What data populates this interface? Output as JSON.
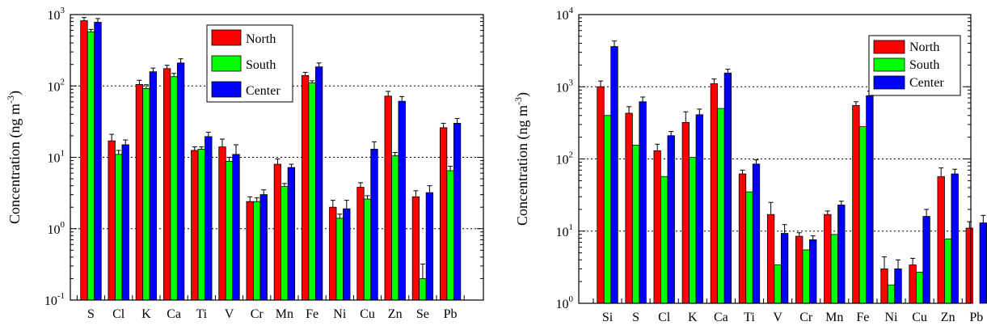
{
  "colors": {
    "North": "#ff0000",
    "South": "#00ff00",
    "Center": "#0000ff"
  },
  "chart_data": [
    {
      "type": "bar",
      "scale": "log",
      "ylabel": "Concentration (ng m-3)",
      "ylabel_main": "Concentration (ng m",
      "ylabel_sup": "-3",
      "ylabel_close": ")",
      "ylim": [
        0.1,
        1000
      ],
      "yticks": [
        {
          "value": 0.1,
          "base": "10",
          "exp": "-1"
        },
        {
          "value": 1,
          "base": "10",
          "exp": "0"
        },
        {
          "value": 10,
          "base": "10",
          "exp": "1"
        },
        {
          "value": 100,
          "base": "10",
          "exp": "2"
        },
        {
          "value": 1000,
          "base": "10",
          "exp": "3"
        }
      ],
      "grid_y": "dotted",
      "legend_position": "top-right",
      "categories": [
        "S",
        "Cl",
        "K",
        "Ca",
        "Ti",
        "V",
        "Cr",
        "Mn",
        "Fe",
        "Ni",
        "Cu",
        "Zn",
        "Se",
        "Pb"
      ],
      "series": [
        {
          "name": "North",
          "values": [
            820,
            17,
            105,
            175,
            12.5,
            14,
            2.4,
            8,
            140,
            2,
            3.8,
            72,
            2.8,
            26
          ],
          "errors": [
            90,
            4,
            15,
            20,
            1.5,
            4,
            0.4,
            1.5,
            15,
            0.5,
            0.6,
            12,
            0.6,
            4
          ]
        },
        {
          "name": "South",
          "values": [
            570,
            11,
            92,
            135,
            13,
            8.8,
            2.4,
            3.9,
            110,
            1.4,
            2.6,
            10.5,
            0.2,
            6.5
          ],
          "errors": [
            50,
            1.5,
            12,
            15,
            1,
            1.2,
            0.3,
            0.4,
            8,
            0.2,
            0.3,
            1.2,
            0.12,
            1
          ]
        },
        {
          "name": "Center",
          "values": [
            780,
            15,
            158,
            210,
            19.5,
            11,
            3,
            7.2,
            185,
            1.9,
            13,
            61,
            3.2,
            30
          ],
          "errors": [
            100,
            2.5,
            20,
            30,
            3,
            4,
            0.5,
            0.8,
            25,
            0.6,
            3.5,
            10,
            0.8,
            5
          ]
        }
      ]
    },
    {
      "type": "bar",
      "scale": "log",
      "ylabel": "Concentration (ng m-3)",
      "ylabel_main": "Concentration (ng m",
      "ylabel_sup": "-3",
      "ylabel_close": ")",
      "ylim": [
        1,
        10000
      ],
      "yticks": [
        {
          "value": 1,
          "base": "10",
          "exp": "0"
        },
        {
          "value": 10,
          "base": "10",
          "exp": "1"
        },
        {
          "value": 100,
          "base": "10",
          "exp": "2"
        },
        {
          "value": 1000,
          "base": "10",
          "exp": "3"
        },
        {
          "value": 10000,
          "base": "10",
          "exp": "4"
        }
      ],
      "grid_y": "dotted",
      "legend_position": "top-right",
      "categories": [
        "Si",
        "S",
        "Cl",
        "K",
        "Ca",
        "Ti",
        "V",
        "Cr",
        "Mn",
        "Fe",
        "Ni",
        "Cu",
        "Zn",
        "Pb"
      ],
      "series": [
        {
          "name": "North",
          "values": [
            1000,
            430,
            130,
            320,
            1100,
            62,
            17,
            8.5,
            17,
            550,
            3,
            3.4,
            57,
            11
          ],
          "errors": [
            200,
            100,
            30,
            130,
            180,
            8,
            8,
            1,
            2,
            70,
            1.4,
            0.8,
            18,
            2.5
          ]
        },
        {
          "name": "South",
          "values": [
            400,
            155,
            57,
            105,
            500,
            35,
            3.4,
            5.5,
            9,
            280,
            1.8,
            2.7,
            7.8,
            0
          ]
        },
        {
          "name": "Center",
          "values": [
            3600,
            620,
            210,
            410,
            1550,
            85,
            9.3,
            7.6,
            23,
            750,
            3,
            16,
            62,
            13
          ],
          "errors": [
            700,
            100,
            30,
            80,
            200,
            12,
            3,
            1,
            3,
            120,
            1,
            4,
            10,
            3.5
          ]
        }
      ]
    }
  ]
}
